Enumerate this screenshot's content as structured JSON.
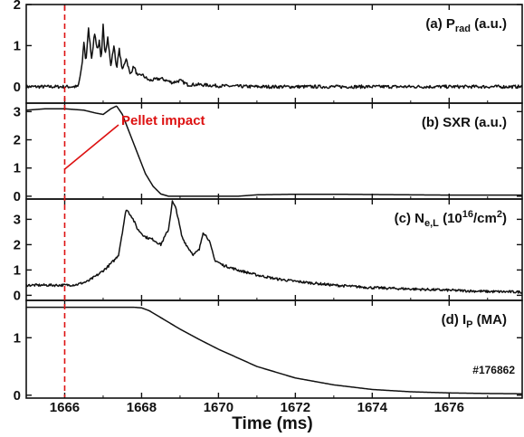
{
  "chart_data": {
    "type": "line",
    "x_axis": {
      "label": "Time (ms)",
      "range": [
        1665,
        1677.9
      ],
      "ticks": [
        "1666",
        "1668",
        "1670",
        "1672",
        "1674",
        "1676"
      ],
      "tick_values": [
        1666,
        1668,
        1670,
        1672,
        1674,
        1676
      ]
    },
    "marker": {
      "time": 1666,
      "label": "Pellet impact",
      "color": "#dd1111",
      "style": "dashed"
    },
    "shot_label": "#176862",
    "panels": [
      {
        "id": "a",
        "label": {
          "prefix": "(a) P",
          "sub": "rad",
          "suffix": " (a.u.)"
        },
        "ylim": [
          -0.4,
          2.0
        ],
        "yticks": [
          "0",
          "1",
          "2"
        ],
        "ytick_values": [
          0,
          1,
          2
        ],
        "noise": 0.04,
        "points": [
          [
            1665,
            0.0
          ],
          [
            1666,
            0.0
          ],
          [
            1666.35,
            0.0
          ],
          [
            1666.45,
            0.5
          ],
          [
            1666.5,
            1.1
          ],
          [
            1666.55,
            0.6
          ],
          [
            1666.62,
            1.4
          ],
          [
            1666.7,
            0.7
          ],
          [
            1666.78,
            1.3
          ],
          [
            1666.85,
            0.9
          ],
          [
            1666.9,
            1.1
          ],
          [
            1666.95,
            0.6
          ],
          [
            1667.0,
            1.5
          ],
          [
            1667.05,
            0.8
          ],
          [
            1667.12,
            1.2
          ],
          [
            1667.2,
            0.5
          ],
          [
            1667.28,
            1.0
          ],
          [
            1667.35,
            0.45
          ],
          [
            1667.42,
            0.9
          ],
          [
            1667.5,
            0.4
          ],
          [
            1667.6,
            0.7
          ],
          [
            1667.7,
            0.3
          ],
          [
            1667.8,
            0.5
          ],
          [
            1667.9,
            0.25
          ],
          [
            1668.0,
            0.3
          ],
          [
            1668.2,
            0.15
          ],
          [
            1668.5,
            0.2
          ],
          [
            1668.8,
            0.1
          ],
          [
            1669.0,
            0.15
          ],
          [
            1669.2,
            0.05
          ],
          [
            1669.5,
            0.05
          ],
          [
            1670,
            0.02
          ],
          [
            1671,
            0.0
          ],
          [
            1677.9,
            0.0
          ]
        ]
      },
      {
        "id": "b",
        "label": {
          "prefix": "(b) SXR (a.u.)",
          "sub": "",
          "suffix": ""
        },
        "ylim": [
          -0.1,
          3.3
        ],
        "yticks": [
          "0",
          "1",
          "2",
          "3"
        ],
        "ytick_values": [
          0,
          1,
          2,
          3
        ],
        "noise": 0.0,
        "points": [
          [
            1665,
            3.05
          ],
          [
            1665.5,
            3.1
          ],
          [
            1666,
            3.1
          ],
          [
            1666.5,
            3.05
          ],
          [
            1666.8,
            2.95
          ],
          [
            1667.0,
            2.9
          ],
          [
            1667.2,
            3.1
          ],
          [
            1667.35,
            3.2
          ],
          [
            1667.5,
            2.9
          ],
          [
            1667.7,
            2.2
          ],
          [
            1667.9,
            1.5
          ],
          [
            1668.1,
            0.8
          ],
          [
            1668.3,
            0.35
          ],
          [
            1668.5,
            0.08
          ],
          [
            1668.7,
            0.0
          ],
          [
            1670.5,
            0.0
          ],
          [
            1671,
            0.05
          ],
          [
            1672,
            0.07
          ],
          [
            1673,
            0.07
          ],
          [
            1674,
            0.06
          ],
          [
            1675,
            0.05
          ],
          [
            1676,
            0.04
          ],
          [
            1677.9,
            0.04
          ]
        ]
      },
      {
        "id": "c",
        "label": {
          "prefix": "(c) N",
          "sub": "e,L",
          "suffix": " (10",
          "sup": "16",
          "tail": "/cm",
          "sup2": "2",
          "end": ")"
        },
        "ylim": [
          -0.2,
          3.8
        ],
        "yticks": [
          "0",
          "1",
          "2",
          "3"
        ],
        "ytick_values": [
          0,
          1,
          2,
          3
        ],
        "noise": 0.05,
        "points": [
          [
            1665,
            0.4
          ],
          [
            1666,
            0.4
          ],
          [
            1666.3,
            0.42
          ],
          [
            1666.6,
            0.55
          ],
          [
            1666.9,
            0.85
          ],
          [
            1667.1,
            1.1
          ],
          [
            1667.3,
            1.4
          ],
          [
            1667.4,
            1.6
          ],
          [
            1667.5,
            2.5
          ],
          [
            1667.6,
            3.4
          ],
          [
            1667.75,
            3.1
          ],
          [
            1667.9,
            2.6
          ],
          [
            1668.1,
            2.3
          ],
          [
            1668.3,
            2.2
          ],
          [
            1668.5,
            2.0
          ],
          [
            1668.7,
            2.6
          ],
          [
            1668.8,
            3.7
          ],
          [
            1668.9,
            3.4
          ],
          [
            1669.05,
            2.3
          ],
          [
            1669.2,
            1.9
          ],
          [
            1669.35,
            1.6
          ],
          [
            1669.5,
            1.8
          ],
          [
            1669.6,
            2.5
          ],
          [
            1669.75,
            2.2
          ],
          [
            1669.9,
            1.4
          ],
          [
            1670.1,
            1.2
          ],
          [
            1670.5,
            1.0
          ],
          [
            1671,
            0.8
          ],
          [
            1671.5,
            0.65
          ],
          [
            1672,
            0.55
          ],
          [
            1673,
            0.4
          ],
          [
            1674,
            0.3
          ],
          [
            1675,
            0.25
          ],
          [
            1676,
            0.2
          ],
          [
            1677,
            0.15
          ],
          [
            1677.9,
            0.13
          ]
        ]
      },
      {
        "id": "d",
        "label": {
          "prefix": "(d) I",
          "sub": "P",
          "suffix": " (MA)"
        },
        "ylim": [
          -0.05,
          1.65
        ],
        "yticks": [
          "0",
          "1"
        ],
        "ytick_values": [
          0,
          1
        ],
        "noise": 0.0,
        "points": [
          [
            1665,
            1.53
          ],
          [
            1666,
            1.53
          ],
          [
            1667,
            1.53
          ],
          [
            1667.8,
            1.53
          ],
          [
            1668.0,
            1.52
          ],
          [
            1668.2,
            1.47
          ],
          [
            1668.5,
            1.35
          ],
          [
            1669,
            1.15
          ],
          [
            1669.5,
            0.97
          ],
          [
            1670,
            0.8
          ],
          [
            1670.5,
            0.65
          ],
          [
            1671,
            0.5
          ],
          [
            1671.5,
            0.4
          ],
          [
            1672,
            0.3
          ],
          [
            1673,
            0.18
          ],
          [
            1674,
            0.1
          ],
          [
            1675,
            0.06
          ],
          [
            1676,
            0.04
          ],
          [
            1677,
            0.03
          ],
          [
            1677.9,
            0.025
          ]
        ]
      }
    ]
  }
}
